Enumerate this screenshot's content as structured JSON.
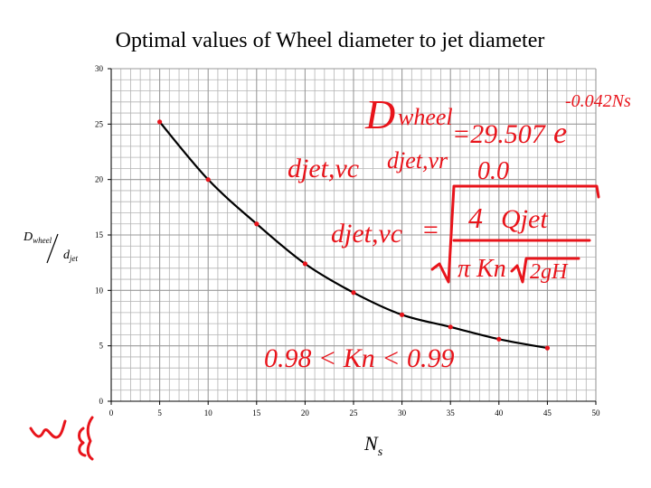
{
  "chart_data": {
    "type": "line",
    "title": "Optimal values of Wheel diameter to jet diameter",
    "xlabel": "N",
    "xlabel_sub": "s",
    "ylabel_num": "D",
    "ylabel_num_sub": "wheel",
    "ylabel_den": "d",
    "ylabel_den_sub": "jet",
    "xlim": [
      0,
      50
    ],
    "ylim": [
      0,
      30
    ],
    "x_ticks": [
      "0",
      "5",
      "10",
      "15",
      "20",
      "25",
      "30",
      "35",
      "40",
      "45",
      "50"
    ],
    "y_ticks": [
      "0",
      "5",
      "10",
      "15",
      "20",
      "25",
      "30"
    ],
    "grid": true,
    "series": [
      {
        "x": [
          5,
          10,
          15,
          20,
          25,
          30,
          35,
          40,
          45
        ],
        "y": [
          25.2,
          20.0,
          16.0,
          12.4,
          9.8,
          7.8,
          6.7,
          5.6,
          4.8
        ],
        "color": "#000000",
        "marker_color": "#e8141b"
      }
    ]
  },
  "annotations": {
    "color": "#e8141b",
    "formula_wheel": "Dwheel = 29.507e^-0.042Ns",
    "formula_jet_1": "djet,vc   djet,vr",
    "formula_zero": "0.0",
    "formula_jet_2": "djet,vc = sqrt(4 Qjet / (π Kn sqrt(2gH)))",
    "formula_kn": "0.98 < Kn < 0.99"
  }
}
